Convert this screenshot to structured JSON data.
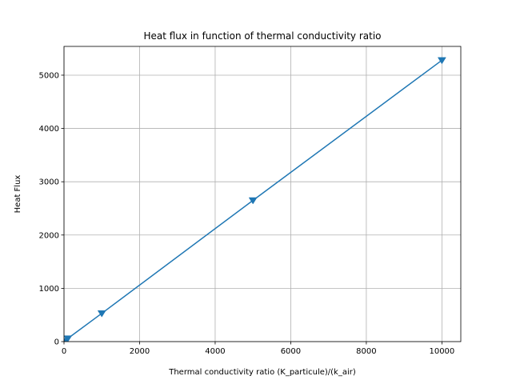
{
  "chart_data": {
    "type": "line",
    "title": "Heat flux in function of thermal conductivity ratio",
    "xlabel": "Thermal conductivity ratio (K_particule)/(k_air)",
    "ylabel": "Heat Flux",
    "xlim": [
      0,
      10500
    ],
    "ylim": [
      0,
      5540
    ],
    "xticks": [
      0,
      2000,
      4000,
      6000,
      8000,
      10000
    ],
    "yticks": [
      0,
      1000,
      2000,
      3000,
      4000,
      5000
    ],
    "grid": true,
    "marker": "triangle-down",
    "color": "#1f77b4",
    "series": [
      {
        "x": [
          10,
          100,
          1000,
          5000,
          10000
        ],
        "values": [
          8,
          58,
          530,
          2650,
          5280
        ]
      }
    ]
  }
}
